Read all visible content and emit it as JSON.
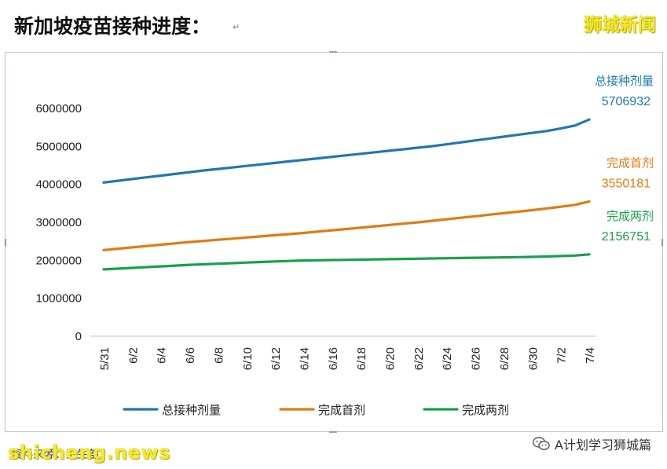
{
  "header": {
    "title": "新加坡疫苗接种进度：",
    "title_mark": "↵",
    "brand": "狮城新闻"
  },
  "footer": {
    "source": "资料来源：卫生部",
    "watermark": "shicheng.news",
    "wechat_account": "A计划学习狮城篇"
  },
  "colors": {
    "total": "#1f77b4",
    "first": "#e07b10",
    "full": "#1aa04a"
  },
  "chart_data": {
    "type": "line",
    "title": "",
    "xlabel": "",
    "ylabel": "",
    "ylim": [
      0,
      6000000
    ],
    "yticks": [
      0,
      1000000,
      2000000,
      3000000,
      4000000,
      5000000,
      6000000
    ],
    "x": [
      "5/31",
      "6/1",
      "6/2",
      "6/3",
      "6/4",
      "6/5",
      "6/6",
      "6/7",
      "6/8",
      "6/9",
      "6/10",
      "6/11",
      "6/12",
      "6/13",
      "6/14",
      "6/15",
      "6/16",
      "6/17",
      "6/18",
      "6/19",
      "6/20",
      "6/21",
      "6/22",
      "6/23",
      "6/24",
      "6/25",
      "6/26",
      "6/27",
      "6/28",
      "6/29",
      "6/30",
      "7/1",
      "7/2",
      "7/3",
      "7/4"
    ],
    "xtick_labels": [
      "5/31",
      "6/2",
      "6/4",
      "6/6",
      "6/8",
      "6/10",
      "6/12",
      "6/14",
      "6/16",
      "6/18",
      "6/20",
      "6/22",
      "6/24",
      "6/26",
      "6/28",
      "6/30",
      "7/2",
      "7/4"
    ],
    "grid": false,
    "legend": "bottom",
    "series": [
      {
        "name": "总接种剂量",
        "color": "#1f77b4",
        "end_label": "5706932",
        "values": [
          4050000,
          4095000,
          4140000,
          4185000,
          4230000,
          4275000,
          4320000,
          4365000,
          4405000,
          4445000,
          4485000,
          4525000,
          4565000,
          4605000,
          4645000,
          4685000,
          4725000,
          4765000,
          4805000,
          4845000,
          4885000,
          4925000,
          4965000,
          5005000,
          5055000,
          5105000,
          5155000,
          5205000,
          5255000,
          5305000,
          5355000,
          5405000,
          5470000,
          5550000,
          5706932
        ]
      },
      {
        "name": "完成首剂",
        "color": "#e07b10",
        "end_label": "3550181",
        "values": [
          2270000,
          2305000,
          2340000,
          2375000,
          2410000,
          2445000,
          2480000,
          2510000,
          2540000,
          2570000,
          2600000,
          2630000,
          2660000,
          2690000,
          2720000,
          2755000,
          2790000,
          2825000,
          2860000,
          2895000,
          2930000,
          2965000,
          3000000,
          3040000,
          3080000,
          3120000,
          3160000,
          3200000,
          3240000,
          3280000,
          3320000,
          3365000,
          3410000,
          3460000,
          3550181
        ]
      },
      {
        "name": "完成两剂",
        "color": "#1aa04a",
        "end_label": "2156751",
        "values": [
          1760000,
          1780000,
          1800000,
          1820000,
          1840000,
          1860000,
          1880000,
          1895000,
          1910000,
          1925000,
          1940000,
          1955000,
          1970000,
          1982000,
          1994000,
          2000000,
          2006000,
          2012000,
          2018000,
          2024000,
          2030000,
          2036000,
          2042000,
          2048000,
          2054000,
          2060000,
          2066000,
          2072000,
          2078000,
          2084000,
          2090000,
          2100000,
          2112000,
          2125000,
          2156751
        ]
      }
    ]
  }
}
